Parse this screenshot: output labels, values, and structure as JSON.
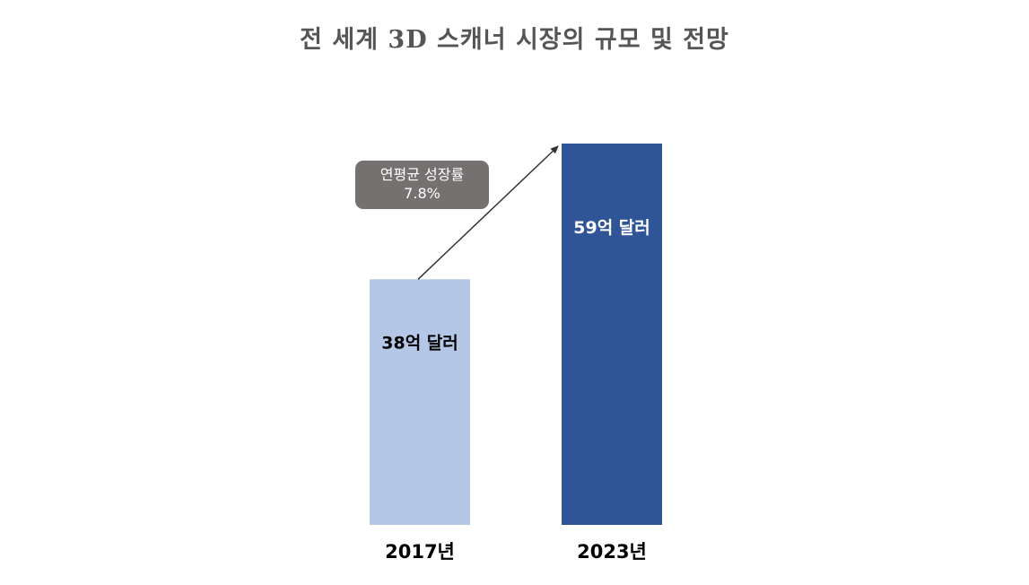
{
  "chart_data": {
    "type": "bar",
    "title": "전 세계 3D 스캐너 시장의 규모 및 전망",
    "categories": [
      "2017년",
      "2023년"
    ],
    "values": [
      38,
      59
    ],
    "data_labels": [
      "38억 달러",
      "59억 달러"
    ],
    "unit": "억 달러",
    "bar_colors": [
      "#b4c7e7",
      "#2f5597"
    ],
    "data_label_colors": [
      "#000000",
      "#ffffff"
    ],
    "annotation": {
      "line1": "연평균 성장률",
      "line2": "7.8%",
      "box_color": "#767171"
    },
    "axes_visible": false,
    "grid": false,
    "legend": "none"
  }
}
